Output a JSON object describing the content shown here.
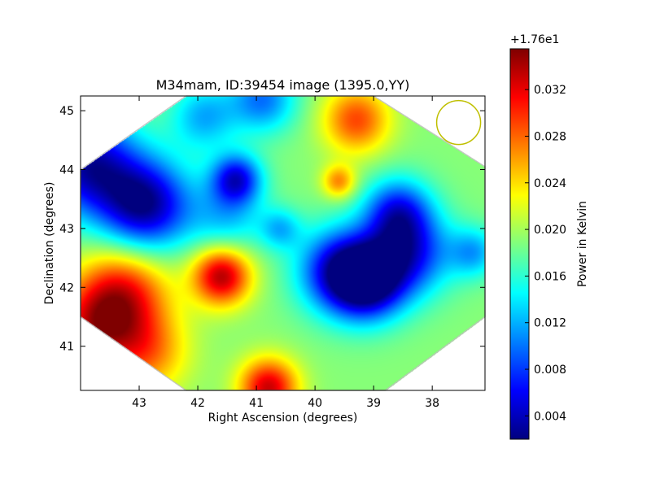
{
  "chart_data": {
    "type": "heatmap",
    "title": "M34mam, ID:39454 image (1395.0,YY)",
    "xlabel": "Right Ascension (degrees)",
    "ylabel": "Declination (degrees)",
    "xlim": [
      44.0,
      37.1
    ],
    "ylim": [
      40.25,
      45.25
    ],
    "x_ticks": [
      43,
      42,
      41,
      40,
      39,
      38
    ],
    "y_ticks": [
      41,
      42,
      43,
      44,
      45
    ],
    "colorbar": {
      "label": "Power in Kelvin",
      "offset_text": "+1.76e1",
      "range": [
        0.002,
        0.0355
      ],
      "ticks": [
        "0.004",
        "0.008",
        "0.012",
        "0.016",
        "0.020",
        "0.024",
        "0.028",
        "0.032"
      ],
      "tick_values": [
        0.004,
        0.008,
        0.012,
        0.016,
        0.02,
        0.024,
        0.028,
        0.032
      ],
      "colormap": [
        "#00007f",
        "#0000ff",
        "#007fff",
        "#00ffff",
        "#7fff7f",
        "#ffff00",
        "#ff7f00",
        "#ff0000",
        "#7f0000"
      ]
    },
    "base_level": 0.019,
    "footprint": {
      "shape": "octagon",
      "vertices": [
        [
          42.2,
          45.25
        ],
        [
          39.0,
          45.25
        ],
        [
          37.1,
          44.05
        ],
        [
          37.1,
          41.5
        ],
        [
          38.8,
          40.25
        ],
        [
          42.2,
          40.25
        ],
        [
          44.0,
          41.5
        ],
        [
          44.0,
          44.0
        ]
      ]
    },
    "features": [
      {
        "ra": 42.9,
        "dec": 43.4,
        "value": 0.003,
        "sigma": 0.55
      },
      {
        "ra": 43.9,
        "dec": 44.1,
        "value": 0.004,
        "sigma": 0.6
      },
      {
        "ra": 41.35,
        "dec": 43.85,
        "value": 0.006,
        "sigma": 0.3
      },
      {
        "ra": 39.1,
        "dec": 42.1,
        "value": 0.003,
        "sigma": 0.45
      },
      {
        "ra": 39.6,
        "dec": 42.3,
        "value": 0.006,
        "sigma": 0.5
      },
      {
        "ra": 38.4,
        "dec": 42.6,
        "value": 0.007,
        "sigma": 0.5
      },
      {
        "ra": 38.6,
        "dec": 43.3,
        "value": 0.008,
        "sigma": 0.4
      },
      {
        "ra": 41.5,
        "dec": 43.2,
        "value": 0.013,
        "sigma": 0.45
      },
      {
        "ra": 43.3,
        "dec": 41.9,
        "value": 0.031,
        "sigma": 0.55
      },
      {
        "ra": 43.8,
        "dec": 41.3,
        "value": 0.029,
        "sigma": 0.5
      },
      {
        "ra": 42.9,
        "dec": 40.9,
        "value": 0.027,
        "sigma": 0.5
      },
      {
        "ra": 41.6,
        "dec": 42.2,
        "value": 0.034,
        "sigma": 0.35
      },
      {
        "ra": 40.8,
        "dec": 40.3,
        "value": 0.033,
        "sigma": 0.35
      },
      {
        "ra": 39.3,
        "dec": 44.85,
        "value": 0.029,
        "sigma": 0.4
      },
      {
        "ra": 39.6,
        "dec": 43.8,
        "value": 0.027,
        "sigma": 0.2
      },
      {
        "ra": 40.9,
        "dec": 45.2,
        "value": 0.01,
        "sigma": 0.4
      },
      {
        "ra": 41.9,
        "dec": 44.9,
        "value": 0.012,
        "sigma": 0.4
      },
      {
        "ra": 37.3,
        "dec": 42.6,
        "value": 0.012,
        "sigma": 0.3
      },
      {
        "ra": 40.6,
        "dec": 43.0,
        "value": 0.013,
        "sigma": 0.25
      }
    ]
  },
  "beam_marker": {
    "ra": 37.55,
    "dec": 44.8,
    "color": "#bfbf00"
  }
}
